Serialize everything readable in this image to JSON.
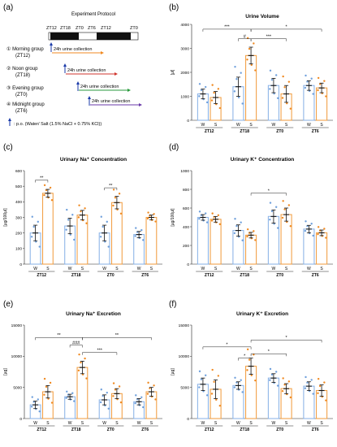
{
  "panel_labels": [
    "(a)",
    "(b)",
    "(c)",
    "(d)",
    "(e)",
    "(f)"
  ],
  "protocol": {
    "title": "Experiment Protocol",
    "timeline_labels": [
      "ZT12",
      "ZT18",
      "ZT0",
      "ZT6",
      "ZT12",
      "ZT0"
    ],
    "groups": [
      {
        "num": "①",
        "name": "Morning group",
        "zt": "(ZT12)",
        "bar": "24h  urine collection"
      },
      {
        "num": "②",
        "name": "Noon group",
        "zt": "(ZT18)",
        "bar": "24h  urine collection"
      },
      {
        "num": "③",
        "name": "Evening group",
        "zt": "(ZT0)",
        "bar": "24h  urine collection"
      },
      {
        "num": "④",
        "name": "Midnight group",
        "zt": "(ZT6)",
        "bar": "24h  urine collection"
      }
    ],
    "legend": ": p.o. (Water/ Salt (1.5% NaCl + 0.75% KCl))"
  },
  "colors": {
    "water": "#8fb6e8",
    "salt": "#f2a24a",
    "water_dot": "#6fa0dc",
    "salt_dot": "#f08a22"
  },
  "chart_data": [
    {
      "id": "b",
      "type": "bar",
      "title": "Urine Volume",
      "ylabel": "[μl]",
      "ylim": [
        0,
        4000
      ],
      "yticks": [
        "0",
        "1000",
        "2000",
        "3000",
        "4000"
      ],
      "categories": [
        "ZT12",
        "ZT18",
        "ZT0",
        "ZT6"
      ],
      "sublabels": [
        "W",
        "S"
      ],
      "series": [
        {
          "values": [
            1100,
            1400,
            1450,
            1450
          ],
          "err": [
            200,
            400,
            300,
            200
          ]
        },
        {
          "values": [
            950,
            2700,
            1100,
            1350
          ],
          "err": [
            250,
            350,
            350,
            200
          ]
        }
      ],
      "annotations": [
        "***",
        "#",
        "***",
        "*"
      ]
    },
    {
      "id": "c",
      "type": "bar",
      "title": "Urinary Na⁺ Concentration",
      "ylabel": "[μg/100μl]",
      "ylim": [
        0,
        600
      ],
      "yticks": [
        "0",
        "100",
        "200",
        "300",
        "400",
        "500",
        "600"
      ],
      "categories": [
        "ZT12",
        "ZT18",
        "ZT0",
        "ZT6"
      ],
      "sublabels": [
        "W",
        "S"
      ],
      "series": [
        {
          "values": [
            200,
            245,
            200,
            190
          ],
          "err": [
            50,
            50,
            50,
            20
          ]
        },
        {
          "values": [
            455,
            315,
            395,
            300
          ],
          "err": [
            25,
            30,
            40,
            15
          ]
        }
      ],
      "annotations": [
        "**",
        "**"
      ]
    },
    {
      "id": "d",
      "type": "bar",
      "title": "Urinary K⁺ Concentration",
      "ylabel": "[μg/100μl]",
      "ylim": [
        0,
        1000
      ],
      "yticks": [
        "0",
        "200",
        "400",
        "600",
        "800",
        "1000"
      ],
      "categories": [
        "ZT12",
        "ZT18",
        "ZT0",
        "ZT6"
      ],
      "sublabels": [
        "W",
        "S"
      ],
      "series": [
        {
          "values": [
            500,
            360,
            510,
            375
          ],
          "err": [
            30,
            60,
            70,
            40
          ]
        },
        {
          "values": [
            480,
            310,
            530,
            335
          ],
          "err": [
            30,
            30,
            70,
            30
          ]
        }
      ],
      "annotations": [
        "*"
      ]
    },
    {
      "id": "e",
      "type": "bar",
      "title": "Urinary Na⁺ Excretion",
      "ylabel": "[μg]",
      "ylim": [
        0,
        15000
      ],
      "yticks": [
        "0",
        "5000",
        "10000",
        "15000"
      ],
      "categories": [
        "ZT12",
        "ZT18",
        "ZT0",
        "ZT6"
      ],
      "sublabels": [
        "W",
        "S"
      ],
      "series": [
        {
          "values": [
            2200,
            3500,
            3000,
            2700
          ],
          "err": [
            600,
            400,
            800,
            500
          ]
        },
        {
          "values": [
            4300,
            8200,
            4000,
            4300
          ],
          "err": [
            1000,
            1000,
            800,
            700
          ]
        }
      ],
      "annotations": [
        "**",
        "###",
        "***",
        "**"
      ]
    },
    {
      "id": "f",
      "type": "bar",
      "title": "Urinary K⁺ Excretion",
      "ylabel": "[μg]",
      "ylim": [
        0,
        15000
      ],
      "yticks": [
        "0",
        "5000",
        "10000",
        "15000"
      ],
      "categories": [
        "ZT12",
        "ZT18",
        "ZT0",
        "ZT6"
      ],
      "sublabels": [
        "W",
        "S"
      ],
      "series": [
        {
          "values": [
            5500,
            5300,
            6500,
            5200
          ],
          "err": [
            1000,
            600,
            700,
            700
          ]
        },
        {
          "values": [
            4700,
            8400,
            4800,
            4500
          ],
          "err": [
            1500,
            1300,
            800,
            900
          ]
        }
      ],
      "annotations": [
        "*",
        "*",
        "*",
        "*"
      ]
    }
  ]
}
